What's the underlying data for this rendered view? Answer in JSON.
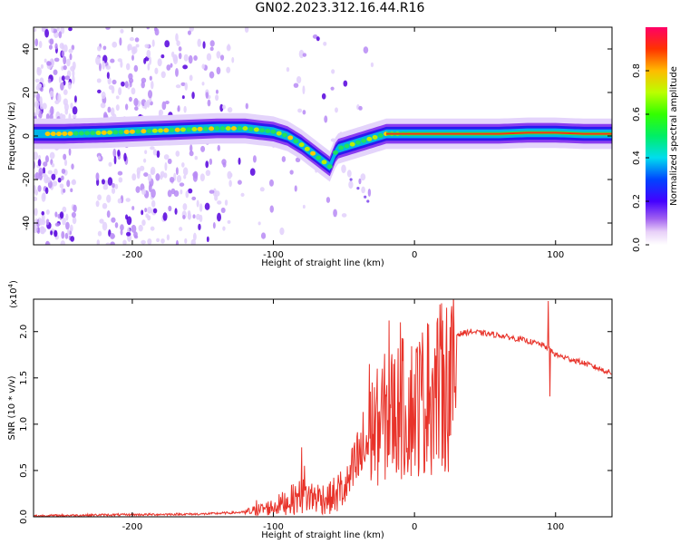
{
  "title": "GN02.2023.312.16.44.R16",
  "chart_data": [
    {
      "type": "heatmap",
      "name": "spectrogram",
      "xlabel": "Height of straight line (km)",
      "ylabel": "Frequency (Hz)",
      "xlim": [
        -270,
        140
      ],
      "ylim": [
        -50,
        50
      ],
      "xticks": [
        -200,
        -100,
        0,
        100
      ],
      "yticks": [
        -40,
        -20,
        0,
        20,
        40
      ],
      "ridge": {
        "x": [
          -270,
          -250,
          -220,
          -200,
          -180,
          -160,
          -140,
          -120,
          -100,
          -90,
          -80,
          -70,
          -60,
          -55,
          -50,
          -40,
          -30,
          -20,
          -10,
          0,
          20,
          40,
          60,
          80,
          100,
          120,
          140
        ],
        "y": [
          1,
          1,
          1.5,
          2,
          2.5,
          3,
          3.5,
          3.5,
          2,
          0,
          -4,
          -9,
          -14,
          -6,
          -5,
          -3,
          -1,
          1,
          1,
          1,
          1,
          1,
          1,
          1.5,
          1.5,
          1,
          1
        ]
      },
      "colorbar": {
        "label": "Normalized spectral amplitude",
        "range": [
          0,
          1
        ],
        "ticks": [
          "0.0",
          "0.2",
          "0.4",
          "0.6",
          "0.8"
        ]
      }
    },
    {
      "type": "line",
      "name": "snr",
      "xlabel": "Height of straight line (km)",
      "ylabel": "SNR (10 * v/v)",
      "scale_label": "(x10",
      "scale_exponent": "4",
      "scale_close": ")",
      "xlim": [
        -270,
        140
      ],
      "ylim": [
        0,
        2.35
      ],
      "xticks": [
        -200,
        -100,
        0,
        100
      ],
      "yticks": [
        "0.0",
        "0.5",
        "1.0",
        "1.5",
        "2.0"
      ],
      "series_color": "#e8332a",
      "envelope": {
        "x": [
          -270,
          -220,
          -150,
          -120,
          -100,
          -80,
          -60,
          -50,
          -40,
          -30,
          -20,
          -10,
          0,
          10,
          20,
          30,
          40,
          60,
          80,
          90,
          95,
          100,
          120,
          140
        ],
        "y": [
          0.01,
          0.02,
          0.03,
          0.05,
          0.12,
          0.25,
          0.22,
          0.35,
          0.8,
          1.2,
          1.45,
          1.55,
          1.6,
          1.75,
          1.88,
          1.97,
          2.0,
          1.96,
          1.9,
          1.86,
          1.82,
          1.75,
          1.66,
          1.55
        ]
      },
      "spikes": [
        {
          "x": -112,
          "y": 0.18
        },
        {
          "x": -80,
          "y": 0.75
        },
        {
          "x": -78,
          "y": 0.55
        },
        {
          "x": -55,
          "y": 0.3
        },
        {
          "x": -32,
          "y": 1.65
        },
        {
          "x": -30,
          "y": 1.45
        },
        {
          "x": -18,
          "y": 2.12
        },
        {
          "x": -10,
          "y": 2.1
        },
        {
          "x": 10,
          "y": 2.08
        },
        {
          "x": 20,
          "y": 2.12
        },
        {
          "x": 95,
          "y": 2.33
        },
        {
          "x": 96,
          "y": 1.3
        }
      ]
    }
  ]
}
